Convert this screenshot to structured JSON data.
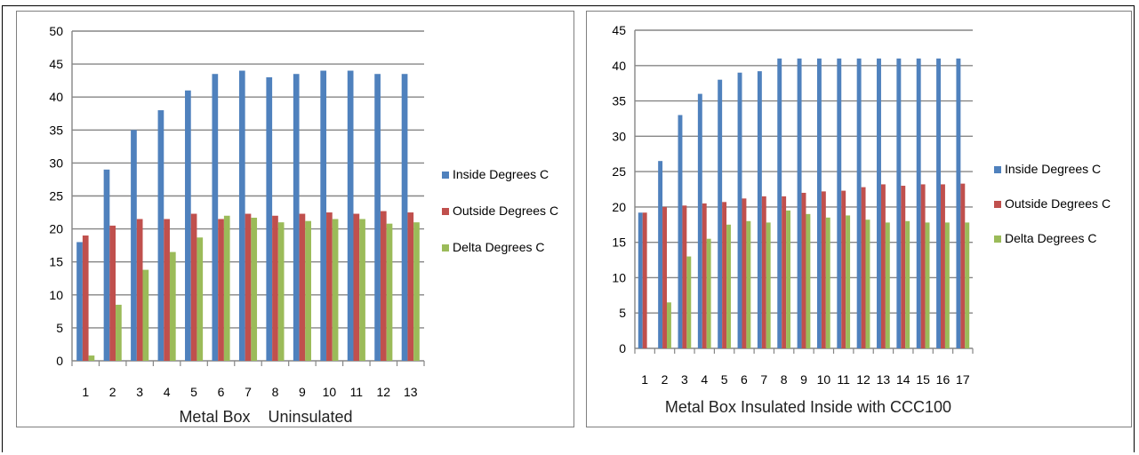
{
  "colors": {
    "inside": "#4f81bd",
    "outside": "#c0504d",
    "delta": "#9bbb59",
    "grid": "#868686"
  },
  "chart_data": [
    {
      "type": "bar",
      "xlabel": "Metal Box    Uninsulated",
      "ylim": [
        0,
        50
      ],
      "yticks": [
        0,
        5,
        10,
        15,
        20,
        25,
        30,
        35,
        40,
        45,
        50
      ],
      "categories": [
        "1",
        "2",
        "3",
        "4",
        "5",
        "6",
        "7",
        "8",
        "9",
        "10",
        "11",
        "12",
        "13"
      ],
      "legend_position": "right",
      "grid": true,
      "series": [
        {
          "name": "Inside Degrees C",
          "values": [
            18,
            29,
            35,
            38,
            41,
            43.5,
            44,
            43,
            43.5,
            44,
            44,
            43.5,
            43.5
          ]
        },
        {
          "name": "Outside Degrees C",
          "values": [
            19,
            20.5,
            21.5,
            21.5,
            22.3,
            21.5,
            22.3,
            22,
            22.3,
            22.5,
            22.3,
            22.7,
            22.5
          ]
        },
        {
          "name": "Delta  Degrees C",
          "values": [
            0.8,
            8.5,
            13.8,
            16.5,
            18.7,
            22,
            21.7,
            21,
            21.2,
            21.5,
            21.5,
            20.8,
            21
          ]
        }
      ]
    },
    {
      "type": "bar",
      "xlabel": "Metal Box Insulated Inside with CCC100",
      "ylim": [
        0,
        45
      ],
      "yticks": [
        0,
        5,
        10,
        15,
        20,
        25,
        30,
        35,
        40,
        45
      ],
      "categories": [
        "1",
        "2",
        "3",
        "4",
        "5",
        "6",
        "7",
        "8",
        "9",
        "10",
        "11",
        "12",
        "13",
        "14",
        "15",
        "16",
        "17"
      ],
      "legend_position": "right",
      "grid": true,
      "series": [
        {
          "name": "Inside Degrees C",
          "values": [
            19.2,
            26.5,
            33,
            36,
            38,
            39,
            39.2,
            41,
            41,
            41,
            41,
            41,
            41,
            41,
            41,
            41,
            41
          ]
        },
        {
          "name": "Outside Degrees C",
          "values": [
            19.2,
            20,
            20.2,
            20.5,
            20.7,
            21.2,
            21.5,
            21.5,
            22,
            22.2,
            22.3,
            22.8,
            23.2,
            23,
            23.2,
            23.2,
            23.3
          ]
        },
        {
          "name": "Delta Degrees C",
          "values": [
            0,
            6.5,
            13,
            15.5,
            17.5,
            18,
            17.8,
            19.5,
            19,
            18.5,
            18.8,
            18.2,
            17.8,
            18,
            17.8,
            17.8,
            17.8
          ]
        }
      ]
    }
  ]
}
